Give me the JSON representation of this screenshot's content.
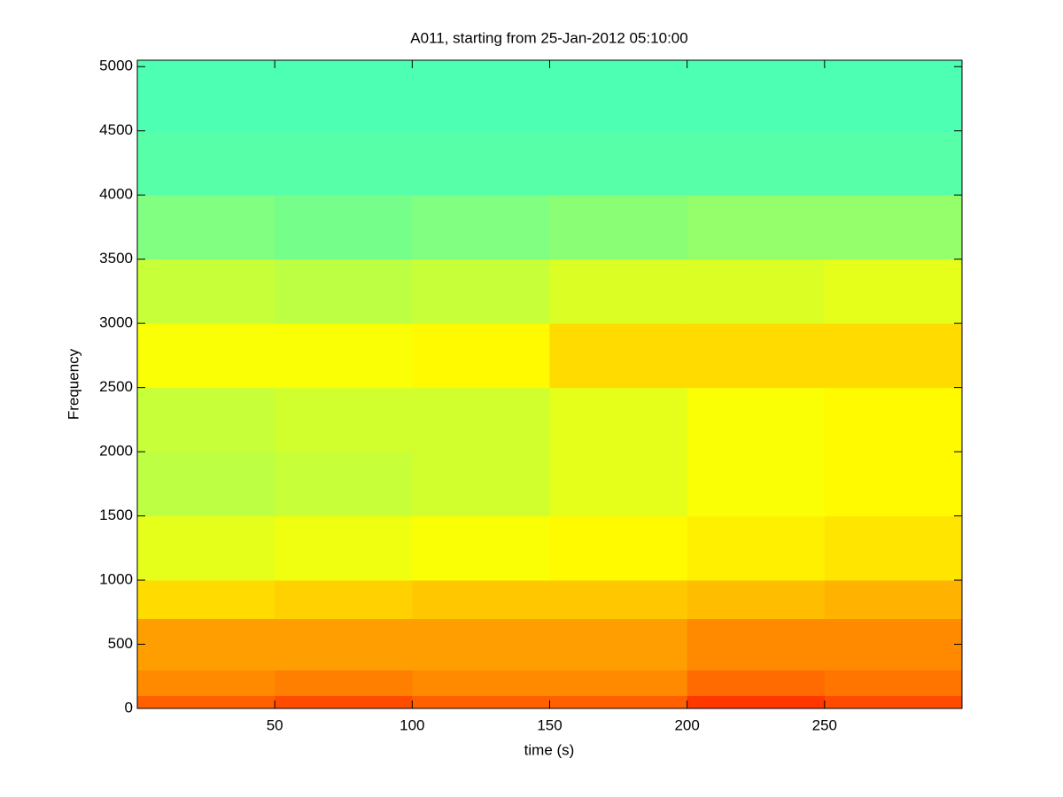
{
  "chart_data": {
    "type": "heatmap",
    "title": "A011, starting from 25-Jan-2012 05:10:00",
    "xlabel": "time (s)",
    "ylabel": "Frequency",
    "colormap": "jet",
    "clim": [
      0,
      1
    ],
    "xbins": [
      0,
      50,
      100,
      150,
      200,
      250,
      300
    ],
    "ybins": [
      0,
      100,
      300,
      700,
      1000,
      1500,
      2000,
      2500,
      3000,
      3500,
      4000,
      4500,
      5050
    ],
    "values": [
      [
        0.78,
        0.8,
        0.78,
        0.78,
        0.82,
        0.8
      ],
      [
        0.74,
        0.75,
        0.74,
        0.74,
        0.77,
        0.76
      ],
      [
        0.72,
        0.72,
        0.72,
        0.72,
        0.74,
        0.74
      ],
      [
        0.66,
        0.67,
        0.68,
        0.68,
        0.69,
        0.7
      ],
      [
        0.6,
        0.61,
        0.62,
        0.63,
        0.64,
        0.65
      ],
      [
        0.56,
        0.57,
        0.58,
        0.6,
        0.62,
        0.63
      ],
      [
        0.57,
        0.58,
        0.58,
        0.6,
        0.62,
        0.63
      ],
      [
        0.62,
        0.62,
        0.63,
        0.66,
        0.66,
        0.66
      ],
      [
        0.57,
        0.56,
        0.57,
        0.59,
        0.59,
        0.6
      ],
      [
        0.5,
        0.49,
        0.5,
        0.51,
        0.52,
        0.52
      ],
      [
        0.46,
        0.46,
        0.46,
        0.46,
        0.46,
        0.46
      ],
      [
        0.45,
        0.45,
        0.45,
        0.45,
        0.45,
        0.45
      ]
    ],
    "xlim": [
      0,
      300
    ],
    "xticks": [
      50,
      100,
      150,
      200,
      250
    ],
    "ylim": [
      0,
      5050
    ],
    "yticks": [
      0,
      500,
      1000,
      1500,
      2000,
      2500,
      3000,
      3500,
      4000,
      4500,
      5000
    ]
  }
}
